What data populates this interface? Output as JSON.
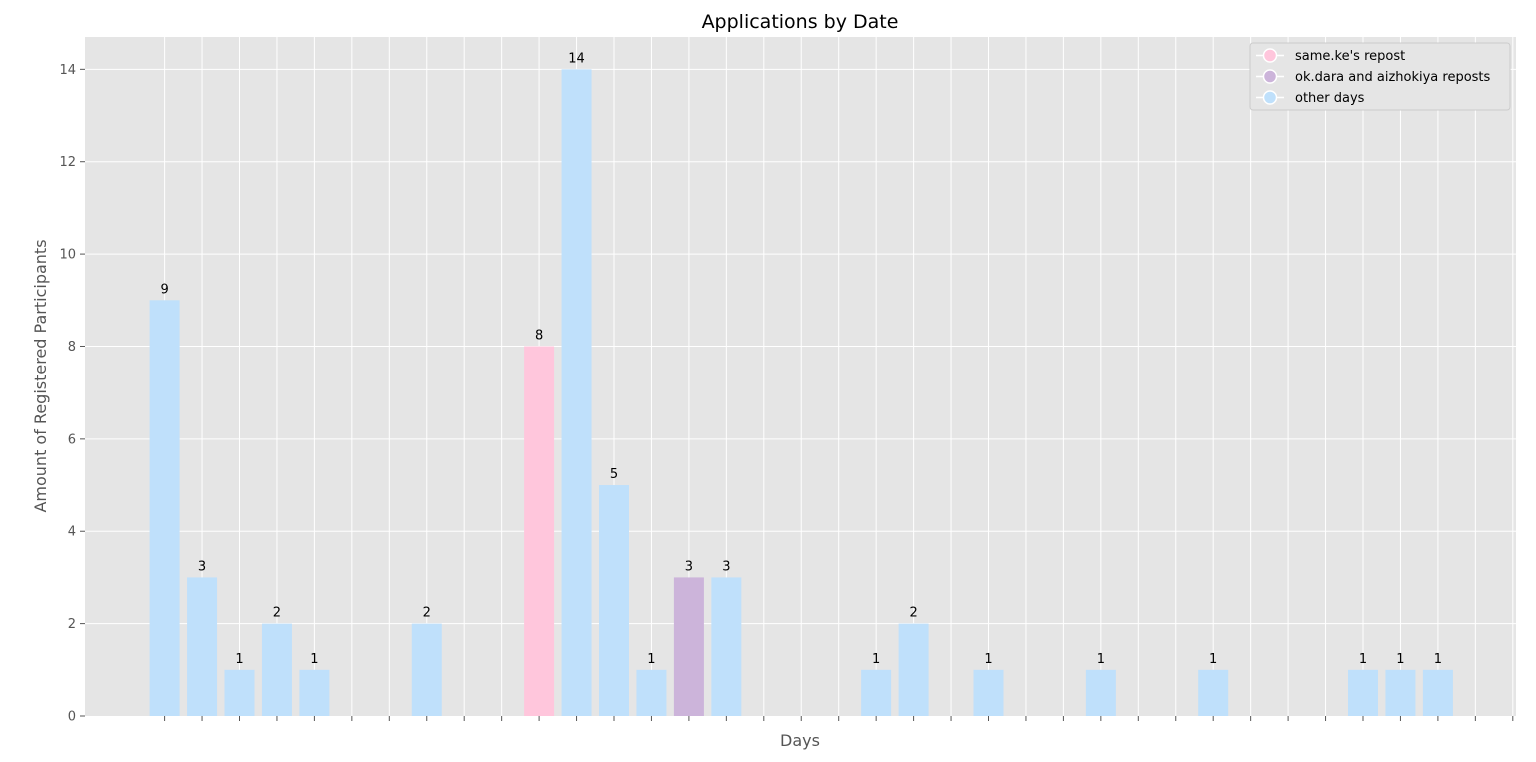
{
  "chart_data": {
    "type": "bar",
    "title": "Applications by Date",
    "xlabel": "Days",
    "ylabel": "Amount of Registered Participants",
    "ylim": [
      0,
      14.7
    ],
    "yticks": [
      0,
      2,
      4,
      6,
      8,
      10,
      12,
      14
    ],
    "x_tick_labels_shown": false,
    "grid": true,
    "legend_position": "top-right",
    "day_slots": 41,
    "x": [
      0,
      1,
      2,
      3,
      4,
      7,
      10,
      11,
      12,
      13,
      14,
      15,
      19,
      20,
      22,
      25,
      28,
      32,
      33,
      34
    ],
    "values": [
      9,
      3,
      1,
      2,
      1,
      2,
      8,
      14,
      5,
      1,
      3,
      3,
      1,
      2,
      1,
      1,
      1,
      1,
      1,
      1
    ],
    "groups": [
      "other",
      "other",
      "other",
      "other",
      "other",
      "other",
      "repost",
      "other",
      "other",
      "other",
      "reposts2",
      "other",
      "other",
      "other",
      "other",
      "other",
      "other",
      "other",
      "other",
      "other"
    ],
    "series": [
      {
        "key": "repost",
        "name": "same.ke's repost",
        "color": "#ffc6dc"
      },
      {
        "key": "reposts2",
        "name": "ok.dara and aizhokiya reposts",
        "color": "#ccb4da"
      },
      {
        "key": "other",
        "name": "other days",
        "color": "#bfe0fb"
      }
    ]
  },
  "colors": {
    "plot_background": "#e5e5e5",
    "grid": "#ffffff",
    "legend_background": "#e5e5e5",
    "legend_border": "#cccccc"
  }
}
